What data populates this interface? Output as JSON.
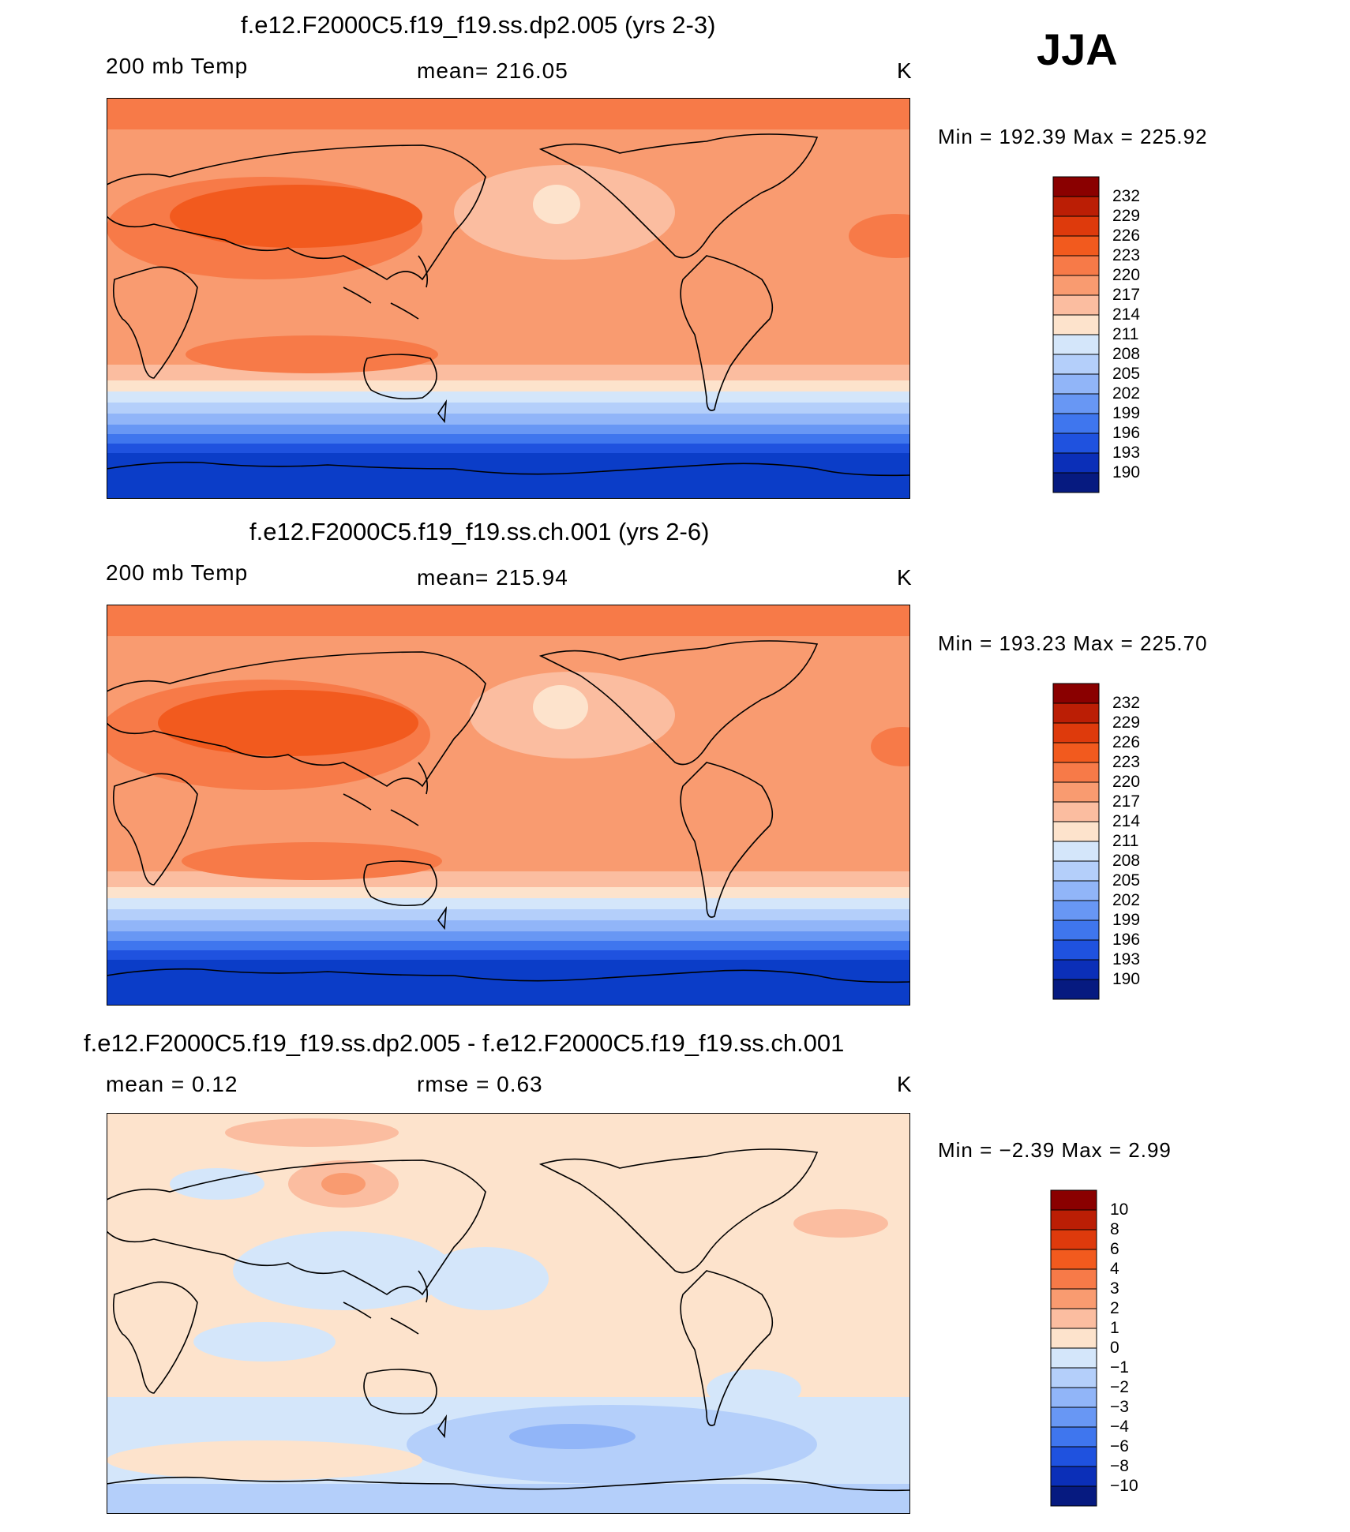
{
  "season": "JJA",
  "panels": [
    {
      "id": "p1",
      "title": "f.e12.F2000C5.f19_f19.ss.dp2.005 (yrs 2-3)",
      "left": "200 mb Temp",
      "center": "mean=  216.05",
      "units": "K",
      "minmax": "Min  =  192.39  Max  =  225.92"
    },
    {
      "id": "p2",
      "title": "f.e12.F2000C5.f19_f19.ss.ch.001 (yrs 2-6)",
      "left": "200 mb Temp",
      "center": "mean=  215.94",
      "units": "K",
      "minmax": "Min  =  193.23  Max  =  225.70"
    },
    {
      "id": "p3",
      "title": "f.e12.F2000C5.f19_f19.ss.dp2.005 - f.e12.F2000C5.f19_f19.ss.ch.001",
      "left": "mean  =      0.12",
      "center": "rmse  =      0.63",
      "units": "K",
      "minmax": "Min  =    −2.39  Max  =      2.99"
    }
  ],
  "colorbars": {
    "abs": {
      "labels": [
        "232",
        "229",
        "226",
        "223",
        "220",
        "217",
        "214",
        "211",
        "208",
        "205",
        "202",
        "199",
        "196",
        "193",
        "190"
      ],
      "colors": [
        "#8a0000",
        "#bb1e05",
        "#de3a0c",
        "#f25a1e",
        "#f77a48",
        "#f99b70",
        "#fbbda0",
        "#fde3cc",
        "#d4e6fa",
        "#b4cffa",
        "#91b5f8",
        "#6897f4",
        "#3f76ee",
        "#1f52df",
        "#0b2fb8",
        "#061a80"
      ]
    },
    "diff": {
      "labels": [
        "10",
        "8",
        "6",
        "4",
        "3",
        "2",
        "1",
        "0",
        "−1",
        "−2",
        "−3",
        "−4",
        "−6",
        "−8",
        "−10"
      ],
      "colors": [
        "#8a0000",
        "#bb1e05",
        "#de3a0c",
        "#f25a1e",
        "#f77a48",
        "#f99b70",
        "#fbbda0",
        "#fde3cc",
        "#d4e6fa",
        "#b4cffa",
        "#91b5f8",
        "#6897f4",
        "#3f76ee",
        "#1f52df",
        "#0b2fb8",
        "#061a80"
      ]
    }
  }
}
